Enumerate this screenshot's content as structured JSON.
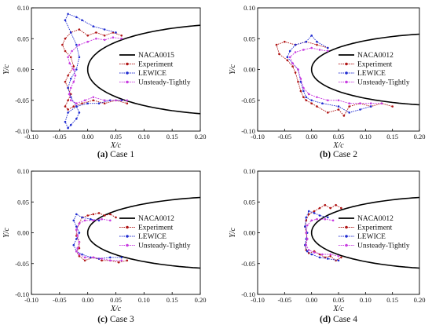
{
  "panel_chart_type": "line",
  "styles": {
    "airfoil": "#000000",
    "experiment": "#b01515",
    "lewice": "#1f2bd0",
    "unsteady": "#c83ce0"
  },
  "chart_data": [
    {
      "type": "line",
      "caption_tag": "(a)",
      "caption_text": " Case 1",
      "xlabel": "X/c",
      "ylabel": "Y/c",
      "xlim": [
        -0.1,
        0.2
      ],
      "ylim": [
        -0.1,
        0.1
      ],
      "xticks": [
        "-0.10",
        "-0.05",
        "0.00",
        "0.05",
        "0.10",
        "0.15",
        "0.20"
      ],
      "yticks": [
        "-0.10",
        "-0.05",
        "0.00",
        "0.05",
        "0.10"
      ],
      "legend_position": "right",
      "series": [
        {
          "name": "NACA0015",
          "style": "airfoil",
          "thickness": 0.15
        },
        {
          "name": "Experiment",
          "style": "experiment",
          "x": [
            0.06,
            0.045,
            0.03,
            0.015,
            0.0,
            -0.015,
            -0.03,
            -0.04,
            -0.045,
            -0.04,
            -0.03,
            -0.025,
            -0.035,
            -0.04,
            -0.035,
            -0.03,
            -0.035,
            -0.04,
            -0.035,
            -0.025,
            -0.01,
            0.01,
            0.03,
            0.05,
            0.07
          ],
          "y": [
            0.055,
            0.06,
            0.055,
            0.06,
            0.055,
            0.065,
            0.06,
            0.05,
            0.04,
            0.03,
            0.02,
            0.005,
            -0.01,
            -0.02,
            -0.03,
            -0.04,
            -0.05,
            -0.06,
            -0.065,
            -0.06,
            -0.055,
            -0.05,
            -0.055,
            -0.05,
            -0.055
          ]
        },
        {
          "name": "LEWICE",
          "style": "lewice",
          "x": [
            0.05,
            0.03,
            0.01,
            -0.01,
            -0.02,
            -0.035,
            -0.04,
            -0.03,
            -0.02,
            -0.015,
            -0.02,
            -0.03,
            -0.035,
            -0.03,
            -0.02,
            -0.015,
            -0.02,
            -0.03,
            -0.035,
            -0.04,
            -0.035,
            -0.02,
            0.0,
            0.02,
            0.04,
            0.06
          ],
          "y": [
            0.06,
            0.065,
            0.07,
            0.08,
            0.085,
            0.09,
            0.08,
            0.06,
            0.04,
            0.02,
            0.0,
            -0.015,
            -0.03,
            -0.045,
            -0.06,
            -0.07,
            -0.08,
            -0.09,
            -0.095,
            -0.085,
            -0.07,
            -0.06,
            -0.055,
            -0.055,
            -0.05,
            -0.05
          ]
        },
        {
          "name": "Unsteady-Tightly",
          "style": "unsteady",
          "x": [
            0.06,
            0.045,
            0.03,
            0.015,
            0.0,
            -0.015,
            -0.028,
            -0.035,
            -0.032,
            -0.025,
            -0.022,
            -0.025,
            -0.03,
            -0.033,
            -0.03,
            -0.02,
            -0.005,
            0.01,
            0.03,
            0.05,
            0.07
          ],
          "y": [
            0.05,
            0.052,
            0.048,
            0.05,
            0.045,
            0.04,
            0.03,
            0.02,
            0.01,
            0.0,
            -0.01,
            -0.02,
            -0.03,
            -0.04,
            -0.05,
            -0.055,
            -0.05,
            -0.045,
            -0.05,
            -0.05,
            -0.05
          ]
        }
      ]
    },
    {
      "type": "line",
      "caption_tag": "(b)",
      "caption_text": " Case 2",
      "xlabel": "X/c",
      "ylabel": "Y/c",
      "xlim": [
        -0.1,
        0.2
      ],
      "ylim": [
        -0.1,
        0.1
      ],
      "xticks": [
        "-0.10",
        "-0.05",
        "0.00",
        "0.05",
        "0.10",
        "0.15",
        "0.20"
      ],
      "yticks": [
        "-0.10",
        "-0.05",
        "0.00",
        "0.05",
        "0.10"
      ],
      "legend_position": "right",
      "series": [
        {
          "name": "NACA0012",
          "style": "airfoil",
          "thickness": 0.12
        },
        {
          "name": "Experiment",
          "style": "experiment",
          "x": [
            0.03,
            0.01,
            -0.01,
            -0.03,
            -0.05,
            -0.065,
            -0.06,
            -0.045,
            -0.035,
            -0.03,
            -0.025,
            -0.02,
            -0.015,
            -0.01,
            0.0,
            0.01,
            0.03,
            0.05,
            0.06,
            0.07,
            0.09,
            0.11,
            0.13,
            0.15
          ],
          "y": [
            0.035,
            0.04,
            0.045,
            0.04,
            0.045,
            0.04,
            0.025,
            0.015,
            0.005,
            -0.005,
            -0.02,
            -0.035,
            -0.045,
            -0.05,
            -0.055,
            -0.06,
            -0.07,
            -0.065,
            -0.075,
            -0.06,
            -0.055,
            -0.06,
            -0.055,
            -0.06
          ]
        },
        {
          "name": "LEWICE",
          "style": "lewice",
          "x": [
            0.03,
            0.01,
            0.0,
            -0.01,
            -0.03,
            -0.04,
            -0.045,
            -0.035,
            -0.025,
            -0.02,
            -0.015,
            -0.01,
            0.0,
            0.02,
            0.05,
            0.07,
            0.09,
            0.11
          ],
          "y": [
            0.035,
            0.045,
            0.055,
            0.045,
            0.04,
            0.03,
            0.02,
            0.01,
            0.0,
            -0.02,
            -0.035,
            -0.045,
            -0.05,
            -0.055,
            -0.06,
            -0.07,
            -0.065,
            -0.06
          ]
        },
        {
          "name": "Unsteady-Tightly",
          "style": "unsteady",
          "x": [
            0.03,
            0.015,
            0.0,
            -0.015,
            -0.03,
            -0.04,
            -0.035,
            -0.025,
            -0.02,
            -0.015,
            -0.005,
            0.01,
            0.03,
            0.05,
            0.07,
            0.09,
            0.11,
            0.13
          ],
          "y": [
            0.03,
            0.032,
            0.035,
            0.032,
            0.028,
            0.02,
            0.01,
            0.0,
            -0.015,
            -0.03,
            -0.04,
            -0.045,
            -0.05,
            -0.05,
            -0.055,
            -0.055,
            -0.055,
            -0.055
          ]
        }
      ]
    },
    {
      "type": "line",
      "caption_tag": "(c)",
      "caption_text": " Case 3",
      "xlabel": "X/c",
      "ylabel": "Y/c",
      "xlim": [
        -0.1,
        0.2
      ],
      "ylim": [
        -0.1,
        0.1
      ],
      "xticks": [
        "-0.10",
        "-0.05",
        "0.00",
        "0.05",
        "0.10",
        "0.15",
        "0.20"
      ],
      "yticks": [
        "-0.10",
        "-0.05",
        "0.00",
        "0.05",
        "0.10"
      ],
      "legend_position": "right",
      "series": [
        {
          "name": "NACA0012",
          "style": "airfoil",
          "thickness": 0.12
        },
        {
          "name": "Experiment",
          "style": "experiment",
          "x": [
            0.05,
            0.04,
            0.03,
            0.02,
            0.01,
            0.0,
            -0.01,
            -0.015,
            -0.02,
            -0.02,
            -0.015,
            -0.015,
            -0.02,
            -0.015,
            -0.005,
            0.01,
            0.025,
            0.04,
            0.055,
            0.07
          ],
          "y": [
            0.025,
            0.03,
            0.028,
            0.032,
            0.03,
            0.028,
            0.025,
            0.015,
            0.005,
            -0.005,
            -0.015,
            -0.025,
            -0.03,
            -0.038,
            -0.045,
            -0.04,
            -0.045,
            -0.045,
            -0.048,
            -0.045
          ]
        },
        {
          "name": "LEWICE",
          "style": "lewice",
          "x": [
            0.02,
            0.005,
            -0.01,
            -0.02,
            -0.025,
            -0.02,
            -0.015,
            -0.02,
            -0.025,
            -0.02,
            -0.01,
            0.005,
            0.02,
            0.04,
            0.06
          ],
          "y": [
            0.02,
            0.022,
            0.025,
            0.03,
            0.02,
            0.01,
            0.0,
            -0.01,
            -0.02,
            -0.03,
            -0.035,
            -0.04,
            -0.042,
            -0.04,
            -0.04
          ]
        },
        {
          "name": "Unsteady-Tightly",
          "style": "unsteady",
          "x": [
            0.04,
            0.025,
            0.01,
            -0.005,
            -0.015,
            -0.02,
            -0.018,
            -0.015,
            -0.018,
            -0.02,
            -0.015,
            -0.005,
            0.01,
            0.025,
            0.04,
            0.06
          ],
          "y": [
            0.02,
            0.022,
            0.02,
            0.02,
            0.015,
            0.005,
            -0.005,
            -0.015,
            -0.025,
            -0.03,
            -0.035,
            -0.04,
            -0.04,
            -0.042,
            -0.045,
            -0.045
          ]
        }
      ]
    },
    {
      "type": "line",
      "caption_tag": "(d)",
      "caption_text": " Case 4",
      "xlabel": "X/c",
      "ylabel": "Y/c",
      "xlim": [
        -0.1,
        0.2
      ],
      "ylim": [
        -0.1,
        0.1
      ],
      "xticks": [
        "-0.10",
        "-0.05",
        "0.00",
        "0.05",
        "0.10",
        "0.15",
        "0.20"
      ],
      "yticks": [
        "-0.10",
        "-0.05",
        "0.00",
        "0.05",
        "0.10"
      ],
      "legend_position": "right",
      "series": [
        {
          "name": "NACA0012",
          "style": "airfoil",
          "thickness": 0.12
        },
        {
          "name": "Experiment",
          "style": "experiment",
          "x": [
            0.055,
            0.045,
            0.035,
            0.025,
            0.015,
            0.005,
            -0.005,
            -0.01,
            -0.012,
            -0.01,
            -0.008,
            -0.012,
            -0.01,
            -0.005,
            0.005,
            0.015,
            0.025,
            0.035,
            0.045,
            0.055
          ],
          "y": [
            0.04,
            0.045,
            0.04,
            0.045,
            0.04,
            0.035,
            0.03,
            0.02,
            0.01,
            0.0,
            -0.01,
            -0.02,
            -0.028,
            -0.033,
            -0.03,
            -0.035,
            -0.04,
            -0.038,
            -0.045,
            -0.04
          ]
        },
        {
          "name": "LEWICE",
          "style": "lewice",
          "x": [
            0.03,
            0.015,
            0.005,
            -0.005,
            -0.01,
            -0.012,
            -0.008,
            -0.01,
            -0.012,
            -0.008,
            0.0,
            0.015,
            0.03,
            0.05
          ],
          "y": [
            0.025,
            0.028,
            0.032,
            0.035,
            0.025,
            0.01,
            0.0,
            -0.01,
            -0.02,
            -0.03,
            -0.035,
            -0.04,
            -0.042,
            -0.045
          ]
        },
        {
          "name": "Unsteady-Tightly",
          "style": "unsteady",
          "x": [
            0.04,
            0.025,
            0.01,
            0.0,
            -0.008,
            -0.01,
            -0.008,
            -0.01,
            -0.005,
            0.005,
            0.02,
            0.035,
            0.05
          ],
          "y": [
            0.02,
            0.022,
            0.022,
            0.02,
            0.012,
            0.0,
            -0.01,
            -0.02,
            -0.028,
            -0.032,
            -0.035,
            -0.035,
            -0.038
          ]
        }
      ]
    }
  ]
}
